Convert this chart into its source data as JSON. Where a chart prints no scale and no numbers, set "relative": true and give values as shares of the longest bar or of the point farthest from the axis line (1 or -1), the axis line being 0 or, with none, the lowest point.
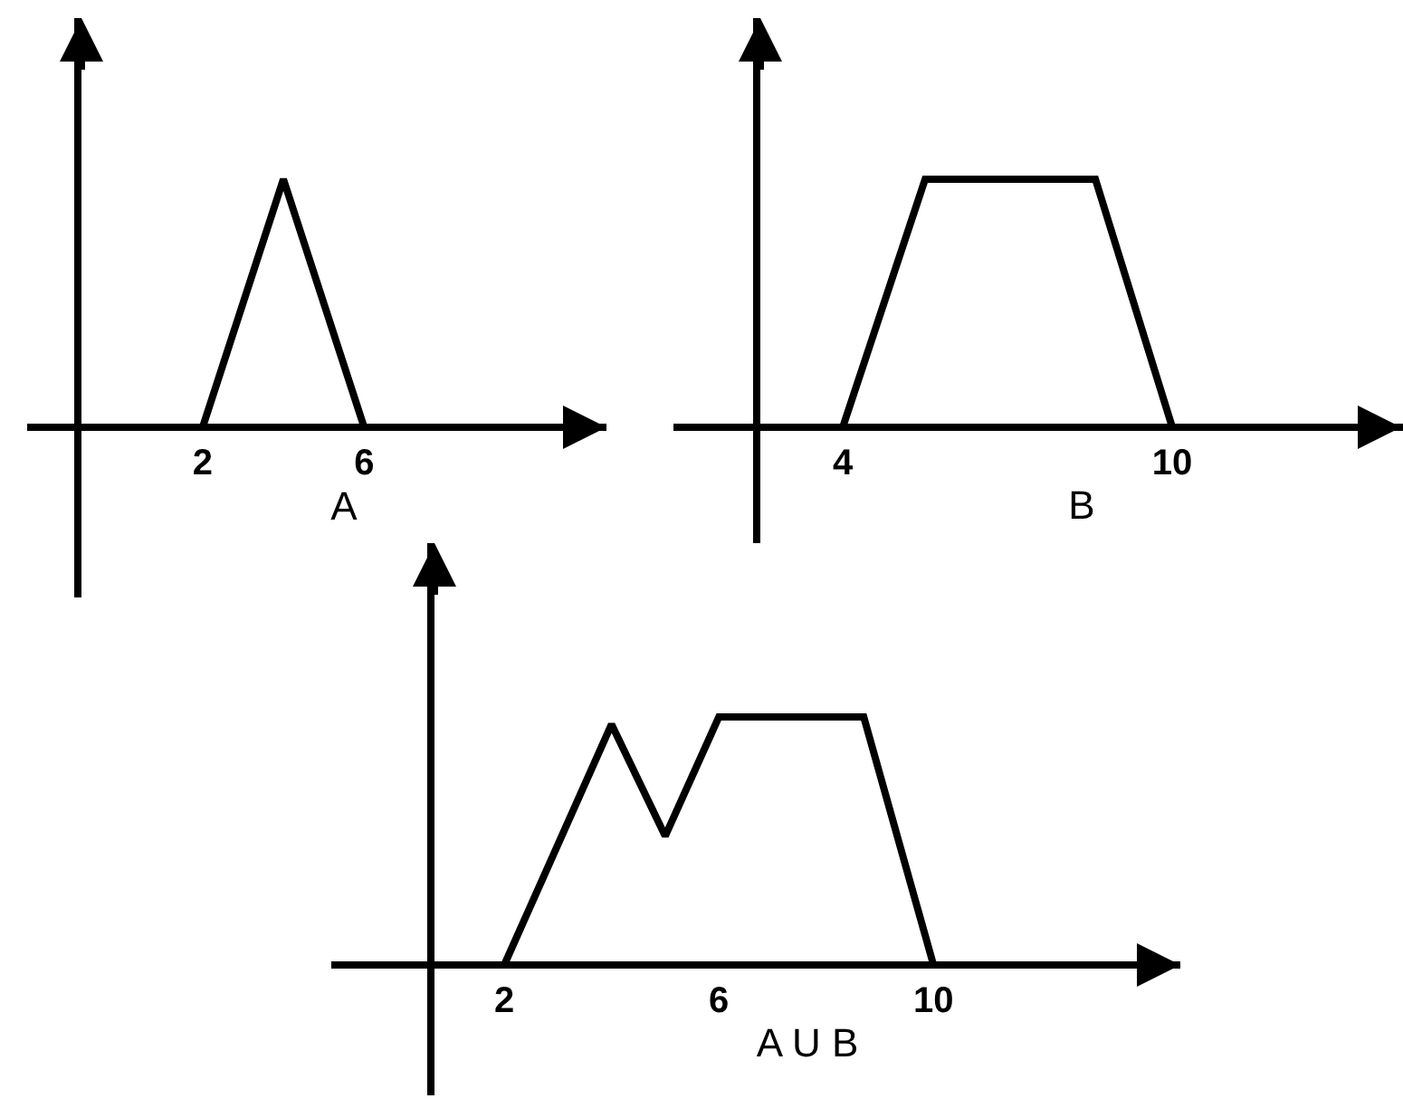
{
  "chart_data": [
    {
      "type": "line",
      "relative": true,
      "xlabel": "A",
      "x": [
        2,
        4,
        6
      ],
      "xlim": [
        -1,
        12
      ],
      "xticks": [
        2,
        6
      ],
      "series": [
        {
          "color": "#000000",
          "values": [
            0,
            1,
            0
          ]
        }
      ]
    },
    {
      "type": "line",
      "relative": true,
      "xlabel": "B",
      "x": [
        4,
        5.5,
        8.6,
        10
      ],
      "xlim": [
        2.5,
        14.2
      ],
      "xticks": [
        4,
        10
      ],
      "series": [
        {
          "color": "#000000",
          "values": [
            0,
            1,
            1,
            0
          ]
        }
      ]
    },
    {
      "type": "line",
      "relative": true,
      "xlabel": "A U B",
      "x": [
        2,
        4,
        5,
        6,
        8.7,
        10
      ],
      "xlim": [
        0.7,
        14.6
      ],
      "xticks": [
        2,
        6,
        10
      ],
      "series": [
        {
          "color": "#000000",
          "values": [
            0,
            0.97,
            0.52,
            1,
            1,
            0
          ]
        }
      ]
    }
  ]
}
